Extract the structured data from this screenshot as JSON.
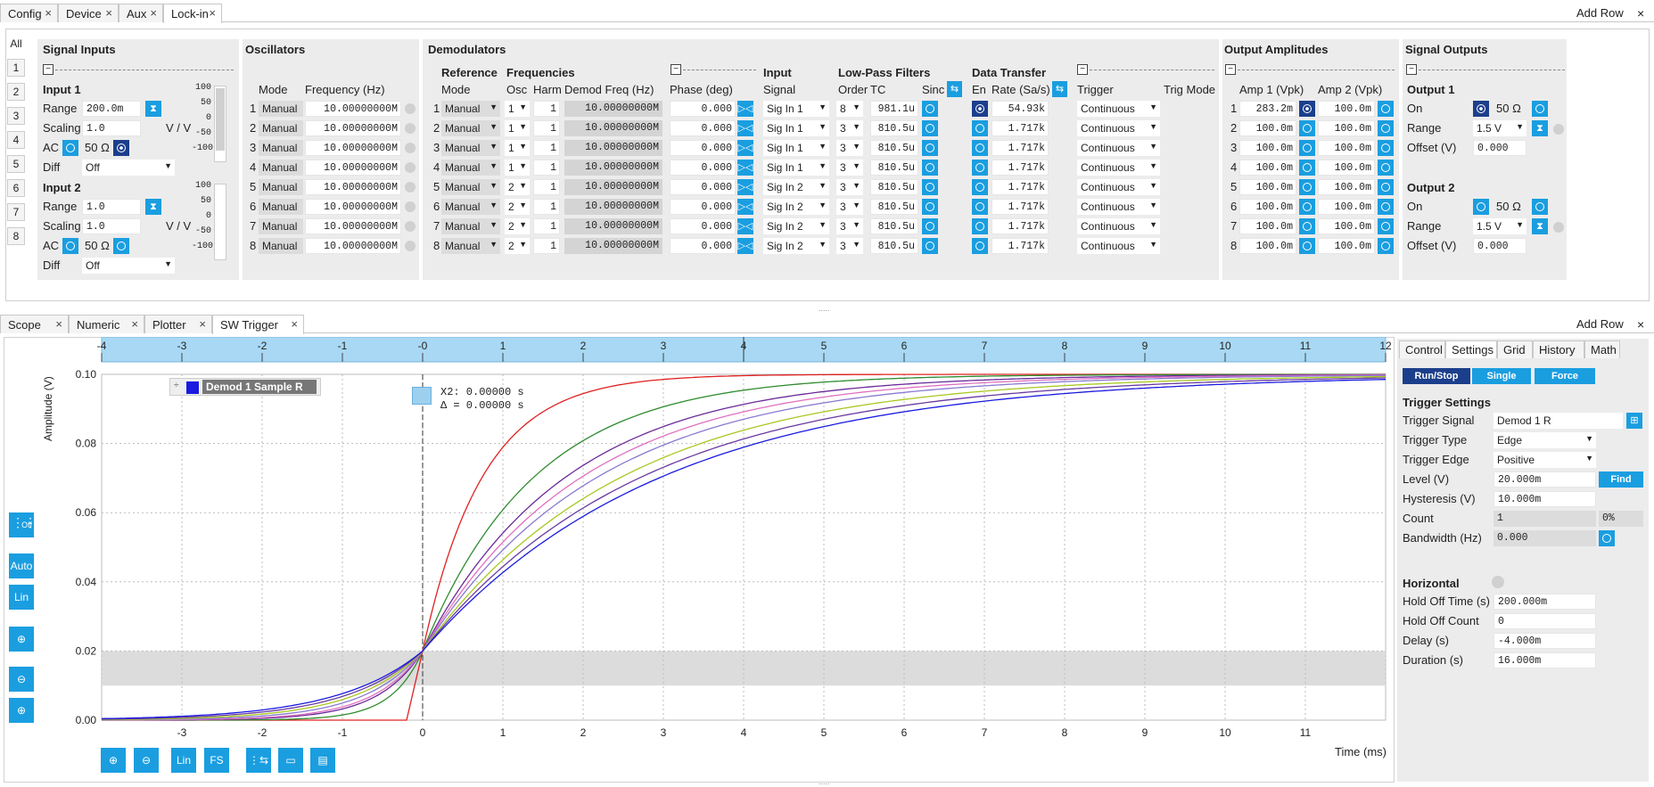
{
  "top_tabs": [
    "Config",
    "Device",
    "Aux",
    "Lock-in"
  ],
  "bottom_tabs": [
    "Scope",
    "Numeric",
    "Plotter",
    "SW Trigger"
  ],
  "add_row": "Add Row",
  "close": "×",
  "side_tabs": [
    "All",
    "1",
    "2",
    "3",
    "4",
    "5",
    "6",
    "7",
    "8"
  ],
  "signal_inputs": {
    "title": "Signal Inputs",
    "input1": "Input 1",
    "input2": "Input 2",
    "range_label": "Range",
    "scaling_label": "Scaling",
    "ac_label": "AC",
    "diff_label": "Diff",
    "in1_range": "200.0m",
    "in1_scaling": "1.0",
    "in2_range": "1.0",
    "in2_scaling": "1.0",
    "vv": "V / V",
    "ohm": "50 Ω",
    "diff_val": "Off",
    "meter_ticks": [
      "100",
      "50",
      "0",
      "-50",
      "-100"
    ]
  },
  "oscillators": {
    "title": "Oscillators",
    "mode_hdr": "Mode",
    "freq_hdr": "Frequency (Hz)",
    "rows": [
      {
        "n": "1",
        "mode": "Manual",
        "freq": "10.00000000M"
      },
      {
        "n": "2",
        "mode": "Manual",
        "freq": "10.00000000M"
      },
      {
        "n": "3",
        "mode": "Manual",
        "freq": "10.00000000M"
      },
      {
        "n": "4",
        "mode": "Manual",
        "freq": "10.00000000M"
      },
      {
        "n": "5",
        "mode": "Manual",
        "freq": "10.00000000M"
      },
      {
        "n": "6",
        "mode": "Manual",
        "freq": "10.00000000M"
      },
      {
        "n": "7",
        "mode": "Manual",
        "freq": "10.00000000M"
      },
      {
        "n": "8",
        "mode": "Manual",
        "freq": "10.00000000M"
      }
    ]
  },
  "demodulators": {
    "title": "Demodulators",
    "reference": "Reference",
    "frequencies": "Frequencies",
    "input": "Input",
    "lpf": "Low-Pass Filters",
    "data_transfer": "Data Transfer",
    "h_mode": "Mode",
    "h_osc": "Osc",
    "h_harm": "Harm",
    "h_dfreq": "Demod Freq (Hz)",
    "h_phase": "Phase (deg)",
    "h_signal": "Signal",
    "h_order": "Order",
    "h_tc": "TC",
    "h_sinc": "Sinc",
    "h_en": "En",
    "h_rate": "Rate (Sa/s)",
    "h_trigger": "Trigger",
    "h_trigmode": "Trig Mode",
    "rows": [
      {
        "n": "1",
        "mode": "Manual",
        "osc": "1",
        "harm": "1",
        "freq": "10.00000000M",
        "phase": "0.000",
        "sig": "Sig In 1",
        "order": "8",
        "tc": "981.1u",
        "rate": "54.93k",
        "trig": "Continuous"
      },
      {
        "n": "2",
        "mode": "Manual",
        "osc": "1",
        "harm": "1",
        "freq": "10.00000000M",
        "phase": "0.000",
        "sig": "Sig In 1",
        "order": "3",
        "tc": "810.5u",
        "rate": "1.717k",
        "trig": "Continuous"
      },
      {
        "n": "3",
        "mode": "Manual",
        "osc": "1",
        "harm": "1",
        "freq": "10.00000000M",
        "phase": "0.000",
        "sig": "Sig In 1",
        "order": "3",
        "tc": "810.5u",
        "rate": "1.717k",
        "trig": "Continuous"
      },
      {
        "n": "4",
        "mode": "Manual",
        "osc": "1",
        "harm": "1",
        "freq": "10.00000000M",
        "phase": "0.000",
        "sig": "Sig In 1",
        "order": "3",
        "tc": "810.5u",
        "rate": "1.717k",
        "trig": "Continuous"
      },
      {
        "n": "5",
        "mode": "Manual",
        "osc": "2",
        "harm": "1",
        "freq": "10.00000000M",
        "phase": "0.000",
        "sig": "Sig In 2",
        "order": "3",
        "tc": "810.5u",
        "rate": "1.717k",
        "trig": "Continuous"
      },
      {
        "n": "6",
        "mode": "Manual",
        "osc": "2",
        "harm": "1",
        "freq": "10.00000000M",
        "phase": "0.000",
        "sig": "Sig In 2",
        "order": "3",
        "tc": "810.5u",
        "rate": "1.717k",
        "trig": "Continuous"
      },
      {
        "n": "7",
        "mode": "Manual",
        "osc": "2",
        "harm": "1",
        "freq": "10.00000000M",
        "phase": "0.000",
        "sig": "Sig In 2",
        "order": "3",
        "tc": "810.5u",
        "rate": "1.717k",
        "trig": "Continuous"
      },
      {
        "n": "8",
        "mode": "Manual",
        "osc": "2",
        "harm": "1",
        "freq": "10.00000000M",
        "phase": "0.000",
        "sig": "Sig In 2",
        "order": "3",
        "tc": "810.5u",
        "rate": "1.717k",
        "trig": "Continuous"
      }
    ]
  },
  "output_amplitudes": {
    "title": "Output Amplitudes",
    "h1": "Amp 1 (Vpk)",
    "h2": "Amp 2 (Vpk)",
    "rows": [
      {
        "n": "1",
        "a1": "283.2m",
        "a2": "100.0m"
      },
      {
        "n": "2",
        "a1": "100.0m",
        "a2": "100.0m"
      },
      {
        "n": "3",
        "a1": "100.0m",
        "a2": "100.0m"
      },
      {
        "n": "4",
        "a1": "100.0m",
        "a2": "100.0m"
      },
      {
        "n": "5",
        "a1": "100.0m",
        "a2": "100.0m"
      },
      {
        "n": "6",
        "a1": "100.0m",
        "a2": "100.0m"
      },
      {
        "n": "7",
        "a1": "100.0m",
        "a2": "100.0m"
      },
      {
        "n": "8",
        "a1": "100.0m",
        "a2": "100.0m"
      }
    ]
  },
  "signal_outputs": {
    "title": "Signal Outputs",
    "out1": "Output 1",
    "out2": "Output 2",
    "on": "On",
    "range": "Range",
    "offset": "Offset (V)",
    "ohm": "50 Ω",
    "range_val": "1.5 V",
    "offset_val": "0.000"
  },
  "plot": {
    "ylabel": "Amplitude (V)",
    "xlabel": "Time (ms)",
    "legend": "Demod 1 Sample R",
    "cursor_x2": "X2: 0.00000 s",
    "cursor_delta": "Δ = 0.00000 s",
    "side_buttons": [
      "Off",
      "Auto",
      "Lin"
    ],
    "bottom_buttons": [
      "Lin",
      "FS"
    ]
  },
  "settings": {
    "tabs": [
      "Control",
      "Settings",
      "Grid",
      "History",
      "Math"
    ],
    "run_stop": "Run/Stop",
    "single": "Single",
    "force": "Force",
    "trigger_settings": "Trigger Settings",
    "trigger_signal_lbl": "Trigger Signal",
    "trigger_signal": "Demod 1 R",
    "trigger_type_lbl": "Trigger Type",
    "trigger_type": "Edge",
    "trigger_edge_lbl": "Trigger Edge",
    "trigger_edge": "Positive",
    "level_lbl": "Level (V)",
    "level": "20.000m",
    "find": "Find",
    "hyst_lbl": "Hysteresis (V)",
    "hyst": "10.000m",
    "count_lbl": "Count",
    "count": "1",
    "count_pct": "0%",
    "bw_lbl": "Bandwidth (Hz)",
    "bw": "0.000",
    "horizontal": "Horizontal",
    "holdoff_time_lbl": "Hold Off Time (s)",
    "holdoff_time": "200.000m",
    "holdoff_count_lbl": "Hold Off Count",
    "holdoff_count": "0",
    "delay_lbl": "Delay (s)",
    "delay": "-4.000m",
    "duration_lbl": "Duration (s)",
    "duration": "16.000m"
  },
  "chart_data": {
    "type": "line",
    "xlabel": "Time (ms)",
    "ylabel": "Amplitude (V)",
    "xlim": [
      -4,
      12
    ],
    "ylim": [
      0,
      0.1
    ],
    "xticks": [
      -4,
      -3,
      -2,
      -1,
      0,
      1,
      2,
      3,
      4,
      5,
      6,
      7,
      8,
      9,
      10,
      11,
      12
    ],
    "yticks": [
      0.0,
      0.02,
      0.04,
      0.06,
      0.08,
      0.1
    ],
    "series": [
      {
        "color": "#e02020",
        "tau": 0.75,
        "rise": 0.2
      },
      {
        "color": "#2e8b2e",
        "tau": 1.4,
        "rise": 0.7
      },
      {
        "color": "#6a2a9a",
        "tau": 1.8,
        "rise": 1.0
      },
      {
        "color": "#e070c0",
        "tau": 2.0,
        "rise": 1.1
      },
      {
        "color": "#8a7ad0",
        "tau": 2.2,
        "rise": 1.3
      },
      {
        "color": "#a8c820",
        "tau": 2.5,
        "rise": 1.5
      },
      {
        "color": "#6a3aa0",
        "tau": 2.75,
        "rise": 1.7
      },
      {
        "color": "#1a1ae0",
        "tau": 3.0,
        "rise": 1.9
      }
    ],
    "colors": {
      "trigger_band": "#dcdcdc",
      "accent": "#1a9ee0"
    }
  }
}
